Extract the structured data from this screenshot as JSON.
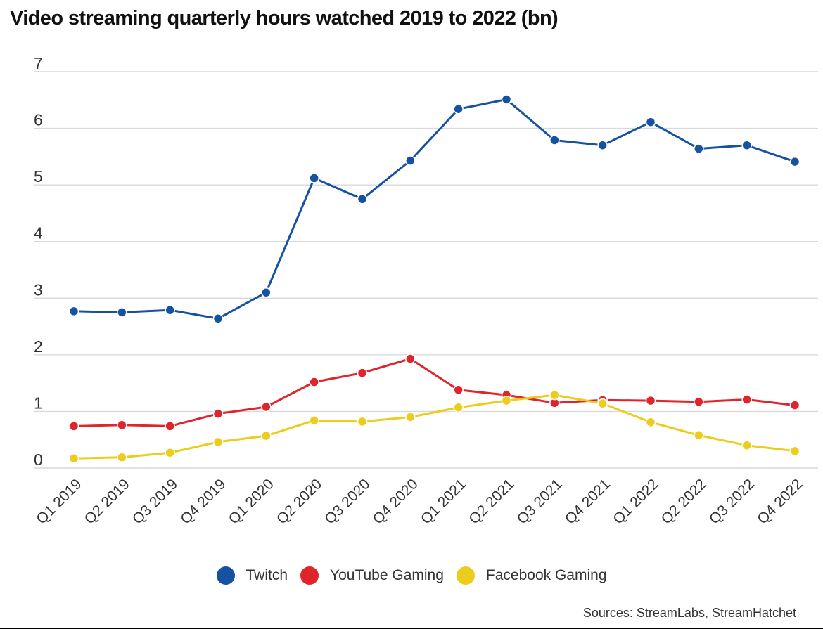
{
  "chart_data": {
    "type": "line",
    "title": "Video streaming quarterly hours watched 2019 to 2022 (bn)",
    "xlabel": "",
    "ylabel": "",
    "ylim": [
      0,
      7
    ],
    "yticks": [
      0,
      1,
      2,
      3,
      4,
      5,
      6,
      7
    ],
    "grid": true,
    "legend_position": "bottom-center",
    "categories": [
      "Q1 2019",
      "Q2 2019",
      "Q3 2019",
      "Q4 2019",
      "Q1 2020",
      "Q2 2020",
      "Q3 2020",
      "Q4 2020",
      "Q1 2021",
      "Q2 2021",
      "Q3 2021",
      "Q4 2021",
      "Q1 2022",
      "Q2 2022",
      "Q3 2022",
      "Q4 2022"
    ],
    "series": [
      {
        "name": "Twitch",
        "color": "#1552a1",
        "values": [
          2.77,
          2.75,
          2.79,
          2.64,
          3.1,
          5.12,
          4.75,
          5.43,
          6.34,
          6.51,
          5.79,
          5.7,
          6.11,
          5.64,
          5.7,
          5.41
        ]
      },
      {
        "name": "YouTube Gaming",
        "color": "#e0242c",
        "values": [
          0.74,
          0.76,
          0.74,
          0.96,
          1.08,
          1.52,
          1.68,
          1.93,
          1.38,
          1.29,
          1.15,
          1.2,
          1.19,
          1.17,
          1.21,
          1.11
        ]
      },
      {
        "name": "Facebook Gaming",
        "color": "#eccc1c",
        "values": [
          0.17,
          0.19,
          0.27,
          0.46,
          0.57,
          0.84,
          0.82,
          0.9,
          1.07,
          1.19,
          1.29,
          1.14,
          0.81,
          0.58,
          0.4,
          0.3
        ]
      }
    ],
    "source": "Sources: StreamLabs, StreamHatchet"
  }
}
